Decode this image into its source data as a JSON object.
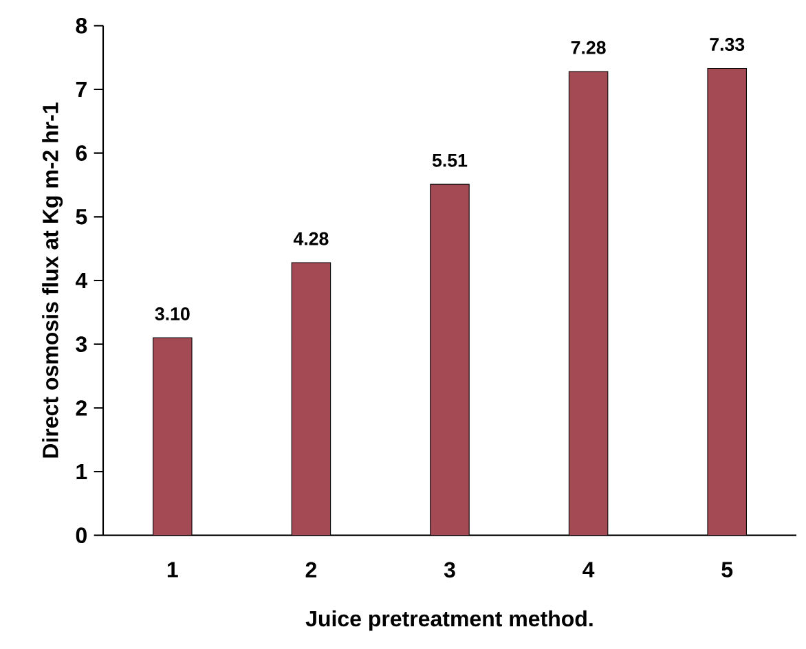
{
  "chart_data": {
    "type": "bar",
    "xlabel": "Juice pretreatment method.",
    "ylabel": "Direct osmosis flux at Kg m-2 hr-1",
    "categories": [
      "1",
      "2",
      "3",
      "4",
      "5"
    ],
    "values": [
      3.1,
      4.28,
      5.51,
      7.28,
      7.33
    ],
    "value_labels": [
      "3.10",
      "4.28",
      "5.51",
      "7.28",
      "7.33"
    ],
    "color": "#a34a55",
    "ylim": [
      0,
      8
    ],
    "yticks": [
      0,
      1,
      2,
      3,
      4,
      5,
      6,
      7,
      8
    ]
  }
}
